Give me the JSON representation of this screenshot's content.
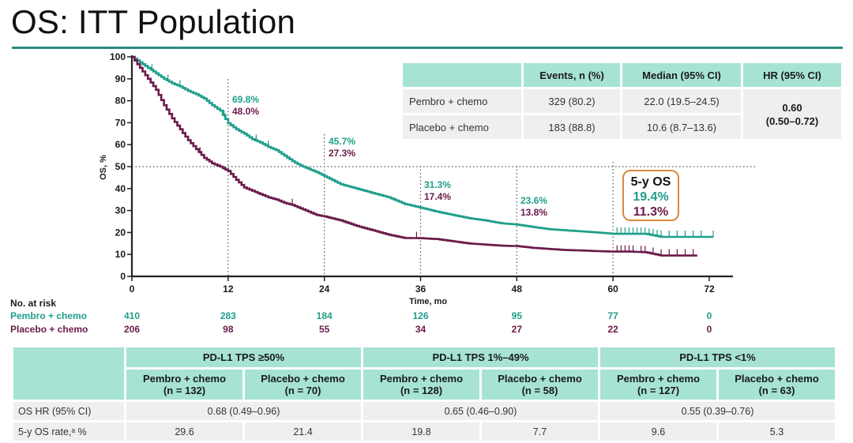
{
  "title": "OS: ITT Population",
  "chart_data": {
    "type": "line",
    "subtype": "kaplan-meier",
    "xlabel": "Time, mo",
    "ylabel": "OS, %",
    "xlim": [
      0,
      72
    ],
    "ylim": [
      0,
      100
    ],
    "xticks": [
      0,
      12,
      24,
      36,
      48,
      60,
      72
    ],
    "yticks": [
      0,
      10,
      20,
      30,
      40,
      50,
      60,
      70,
      80,
      90,
      100
    ],
    "reference_lines": {
      "y": 50,
      "x": [
        12,
        24,
        36,
        48,
        60
      ]
    },
    "series": [
      {
        "name": "Pembro + chemo",
        "color": "#1f9e8a",
        "x": [
          0,
          1,
          2,
          3,
          4,
          5,
          6,
          7,
          8,
          9,
          10,
          11,
          12,
          13,
          14,
          15,
          16,
          17,
          18,
          19,
          20,
          21,
          22,
          23,
          24,
          26,
          28,
          30,
          32,
          34,
          36,
          38,
          40,
          42,
          44,
          46,
          48,
          50,
          52,
          54,
          56,
          58,
          60,
          62,
          64,
          66,
          68,
          70,
          72.5
        ],
        "y": [
          100,
          97.5,
          95,
          92.5,
          90,
          88,
          86.5,
          84.5,
          83,
          81,
          78,
          75.5,
          69.8,
          67,
          65,
          62.5,
          61,
          59,
          57.5,
          55,
          52.5,
          50.5,
          49,
          47.5,
          45.7,
          42,
          40,
          38,
          36,
          33,
          31.3,
          29.5,
          28,
          26.5,
          25.5,
          24.2,
          23.6,
          22.5,
          21.5,
          21,
          20.5,
          20,
          19.4,
          19.4,
          19.4,
          18,
          18,
          18,
          18
        ],
        "censor_x": [
          2.5,
          4.5,
          6,
          11.5,
          15.5,
          17,
          60.5,
          61,
          61.5,
          62,
          62.5,
          63,
          63.5,
          64,
          64.5,
          65,
          65.5,
          66,
          67,
          68,
          69,
          70,
          71,
          72.5
        ]
      },
      {
        "name": "Placebo + chemo",
        "color": "#6b1a4a",
        "x": [
          0,
          1,
          2,
          3,
          4,
          5,
          6,
          7,
          8,
          9,
          10,
          11,
          12,
          13,
          14,
          15,
          16,
          17,
          18,
          19,
          20,
          21,
          22,
          23,
          24,
          26,
          28,
          30,
          32,
          34,
          36,
          38,
          40,
          42,
          44,
          46,
          48,
          50,
          52,
          54,
          56,
          58,
          60,
          62,
          64,
          66,
          68,
          70,
          70.5
        ],
        "y": [
          100,
          95,
          90,
          85,
          78,
          72,
          67,
          62,
          58,
          54,
          51.5,
          50,
          48.0,
          44,
          40.5,
          39,
          37.5,
          36,
          35,
          33.5,
          32.5,
          31,
          29.5,
          28,
          27.3,
          25.5,
          23,
          21,
          19,
          17.5,
          17.4,
          17,
          16,
          15,
          14.5,
          14,
          13.8,
          13,
          12.5,
          12,
          11.8,
          11.5,
          11.3,
          11.3,
          11,
          9.5,
          9.5,
          9.5,
          9.5
        ],
        "censor_x": [
          8.5,
          20,
          35.5,
          60.5,
          61,
          61.5,
          62,
          62.5,
          63.5,
          64,
          65,
          66,
          67,
          68,
          69,
          70
        ]
      }
    ],
    "annotations": [
      {
        "x": 12,
        "pembro": "69.8%",
        "placebo": "48.0%"
      },
      {
        "x": 24,
        "pembro": "45.7%",
        "placebo": "27.3%"
      },
      {
        "x": 36,
        "pembro": "31.3%",
        "placebo": "17.4%"
      },
      {
        "x": 48,
        "pembro": "23.6%",
        "placebo": "13.8%"
      }
    ],
    "five_year_box": {
      "heading": "5-y OS",
      "pembro": "19.4%",
      "placebo": "11.3%",
      "border_color": "#d98a3c"
    }
  },
  "summary_table": {
    "headers": [
      "",
      "Events, n (%)",
      "Median (95% CI)",
      "HR (95% CI)"
    ],
    "rows": [
      {
        "label": "Pembro + chemo",
        "events": "329 (80.2)",
        "median": "22.0 (19.5–24.5)"
      },
      {
        "label": "Placebo + chemo",
        "events": "183 (88.8)",
        "median": "10.6 (8.7–13.6)"
      }
    ],
    "hr_value": "0.60",
    "hr_ci": "(0.50–0.72)"
  },
  "at_risk": {
    "heading": "No. at risk",
    "times": [
      0,
      12,
      24,
      36,
      48,
      60,
      72
    ],
    "rows": [
      {
        "label": "Pembro + chemo",
        "values": [
          "410",
          "283",
          "184",
          "126",
          "95",
          "77",
          "0"
        ]
      },
      {
        "label": "Placebo + chemo",
        "values": [
          "206",
          "98",
          "55",
          "34",
          "27",
          "22",
          "0"
        ]
      }
    ]
  },
  "subgroup_table": {
    "groups": [
      "PD-L1 TPS ≥50%",
      "PD-L1 TPS 1%–49%",
      "PD-L1 TPS <1%"
    ],
    "arms": [
      {
        "name": "Pembro + chemo",
        "n": "(n = 132)"
      },
      {
        "name": "Placebo + chemo",
        "n": "(n = 70)"
      },
      {
        "name": "Pembro + chemo",
        "n": "(n = 128)"
      },
      {
        "name": "Placebo + chemo",
        "n": "(n = 58)"
      },
      {
        "name": "Pembro + chemo",
        "n": "(n = 127)"
      },
      {
        "name": "Placebo + chemo",
        "n": "(n = 63)"
      }
    ],
    "hr_label": "OS HR (95% CI)",
    "hr_values": [
      "0.68 (0.49–0.96)",
      "0.65 (0.46–0.90)",
      "0.55 (0.39–0.76)"
    ],
    "rate_label": "5-y OS rate,ᵃ %",
    "rate_values": [
      "29.6",
      "21.4",
      "19.8",
      "7.7",
      "9.6",
      "5.3"
    ]
  }
}
